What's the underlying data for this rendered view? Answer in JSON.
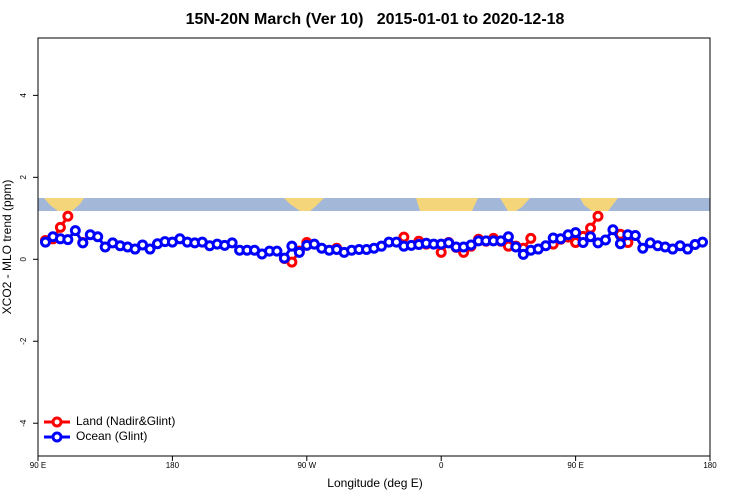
{
  "chart_data": {
    "type": "line",
    "title": "15N-20N March (Ver 10)   2015-01-01 to 2020-12-18",
    "xlabel": "Longitude (deg E)",
    "ylabel": "XCO2 - MLO trend (ppm)",
    "x": [
      95,
      100,
      105,
      110,
      115,
      120,
      125,
      130,
      135,
      140,
      145,
      150,
      155,
      160,
      165,
      170,
      175,
      180,
      185,
      190,
      195,
      200,
      205,
      210,
      215,
      220,
      225,
      230,
      235,
      240,
      245,
      250,
      255,
      260,
      265,
      270,
      275,
      280,
      285,
      290,
      295,
      300,
      305,
      310,
      315,
      320,
      325,
      330,
      335,
      340,
      345,
      350,
      355,
      360,
      365,
      370,
      375,
      380,
      385,
      390,
      395,
      400,
      405,
      410,
      415,
      420,
      425,
      430,
      435,
      440,
      445,
      450,
      455,
      460,
      465,
      470,
      475,
      480,
      485,
      490,
      495,
      500,
      505,
      510,
      515,
      520,
      525,
      530,
      535
    ],
    "series": [
      {
        "name": "Land (Nadir&Glint)",
        "color": "#ff0000",
        "values": [
          0.46,
          0.5,
          0.78,
          1.05,
          null,
          0.41,
          null,
          null,
          null,
          null,
          null,
          null,
          null,
          null,
          null,
          null,
          null,
          null,
          null,
          null,
          null,
          null,
          null,
          null,
          null,
          null,
          null,
          null,
          null,
          null,
          null,
          null,
          0.02,
          -0.07,
          0.2,
          0.41,
          null,
          null,
          null,
          0.27,
          null,
          null,
          null,
          null,
          null,
          null,
          null,
          null,
          0.54,
          null,
          0.44,
          0.37,
          null,
          0.17,
          0.41,
          0.29,
          0.17,
          0.32,
          0.49,
          0.44,
          0.51,
          0.44,
          0.32,
          0.32,
          0.27,
          0.51,
          null,
          null,
          0.37,
          0.49,
          0.54,
          0.41,
          0.56,
          0.76,
          1.05,
          null,
          null,
          0.61,
          0.41,
          null,
          null,
          null,
          null,
          null,
          null,
          null,
          null,
          null,
          null
        ]
      },
      {
        "name": "Ocean (Glint)",
        "color": "#0000ff",
        "values": [
          0.42,
          0.55,
          0.5,
          0.48,
          0.7,
          0.4,
          0.6,
          0.55,
          0.3,
          0.4,
          0.33,
          0.3,
          0.25,
          0.35,
          0.25,
          0.38,
          0.43,
          0.42,
          0.5,
          0.42,
          0.4,
          0.42,
          0.33,
          0.37,
          0.34,
          0.4,
          0.22,
          0.22,
          0.22,
          0.13,
          0.2,
          0.2,
          0.03,
          0.32,
          0.17,
          0.34,
          0.37,
          0.27,
          0.22,
          0.24,
          0.17,
          0.22,
          0.24,
          0.24,
          0.27,
          0.32,
          0.42,
          0.42,
          0.32,
          0.34,
          0.36,
          0.39,
          0.37,
          0.37,
          0.4,
          0.3,
          0.3,
          0.35,
          0.45,
          0.45,
          0.45,
          0.45,
          0.55,
          0.3,
          0.12,
          0.22,
          0.25,
          0.33,
          0.52,
          0.5,
          0.6,
          0.65,
          0.41,
          0.55,
          0.4,
          0.47,
          0.72,
          0.38,
          0.6,
          0.58,
          0.27,
          0.4,
          0.33,
          0.3,
          0.25,
          0.33,
          0.25,
          0.36,
          0.42
        ]
      }
    ],
    "xlim": [
      90,
      540
    ],
    "xticks": [
      {
        "value": 90,
        "label": "90 E"
      },
      180,
      {
        "value": 270,
        "label": "90 W"
      },
      {
        "value": 360,
        "label": "0"
      },
      {
        "value": 450,
        "label": "90 E"
      },
      {
        "value": 540,
        "label": "180"
      }
    ],
    "ylim": [
      -4.8,
      5.4
    ],
    "yticks": [
      -4,
      -2,
      0,
      2,
      4
    ],
    "legend": "bottom-left"
  }
}
